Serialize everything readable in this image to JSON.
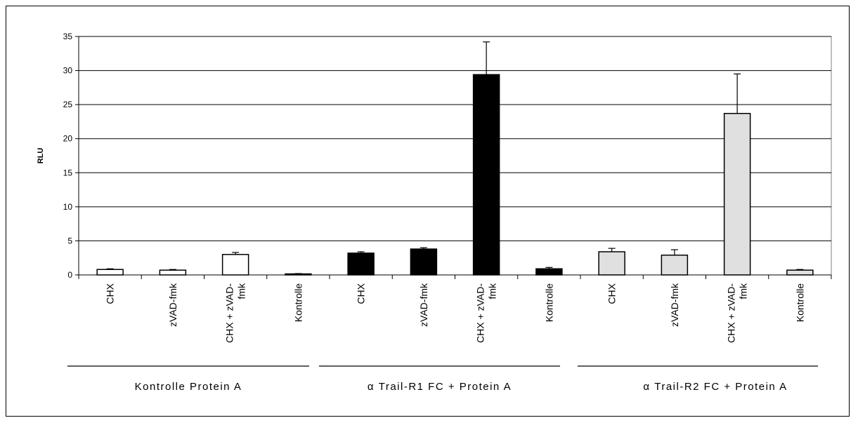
{
  "chart_data": {
    "type": "bar",
    "ylabel": "RLU",
    "ylim": [
      0,
      35
    ],
    "yticks": [
      0,
      5,
      10,
      15,
      20,
      25,
      30,
      35
    ],
    "grid": true,
    "groups": [
      {
        "label": "Kontrolle Protein A",
        "color": "#ffffff",
        "bars": [
          {
            "category": [
              "CHX"
            ],
            "value": 0.8,
            "error": 0.1
          },
          {
            "category": [
              "zVAD-fmk"
            ],
            "value": 0.7,
            "error": 0.1
          },
          {
            "category": [
              "CHX + zVAD-",
              "fmk"
            ],
            "value": 3.0,
            "error": 0.3
          },
          {
            "category": [
              "Kontrolle"
            ],
            "value": 0.15,
            "error": 0.05
          }
        ]
      },
      {
        "label": "α  Trail-R1 FC + Protein A",
        "color": "#000000",
        "bars": [
          {
            "category": [
              "CHX"
            ],
            "value": 3.2,
            "error": 0.2
          },
          {
            "category": [
              "zVAD-fmk"
            ],
            "value": 3.8,
            "error": 0.2
          },
          {
            "category": [
              "CHX + zVAD-",
              "fmk"
            ],
            "value": 29.4,
            "error": 4.8
          },
          {
            "category": [
              "Kontrolle"
            ],
            "value": 0.9,
            "error": 0.2
          }
        ]
      },
      {
        "label": "α  Trail-R2 FC + Protein A",
        "color": "#e0e0e0",
        "bars": [
          {
            "category": [
              "CHX"
            ],
            "value": 3.4,
            "error": 0.5
          },
          {
            "category": [
              "zVAD-fmk"
            ],
            "value": 2.9,
            "error": 0.8
          },
          {
            "category": [
              "CHX + zVAD-",
              "fmk"
            ],
            "value": 23.7,
            "error": 5.8
          },
          {
            "category": [
              "Kontrolle"
            ],
            "value": 0.7,
            "error": 0.1
          }
        ]
      }
    ]
  }
}
